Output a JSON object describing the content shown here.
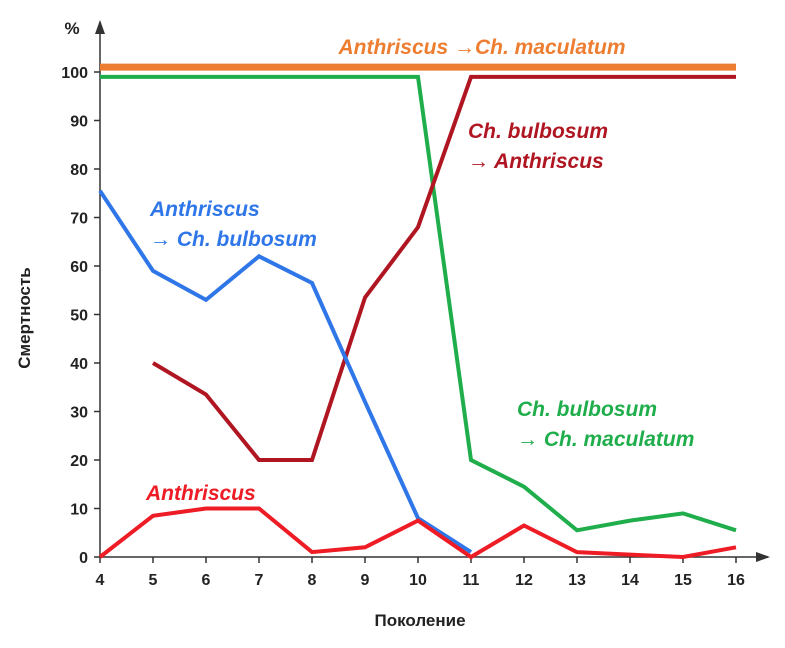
{
  "chart_data": {
    "type": "line",
    "xlabel": "Поколение",
    "ylabel": "Смертность",
    "yunit": "%",
    "xlim": [
      4,
      16
    ],
    "ylim": [
      0,
      100
    ],
    "xticks": [
      4,
      5,
      6,
      7,
      8,
      9,
      10,
      11,
      12,
      13,
      14,
      15,
      16
    ],
    "yticks": [
      0,
      10,
      20,
      30,
      40,
      50,
      60,
      70,
      80,
      90,
      100
    ],
    "grid": false,
    "series": [
      {
        "key": "orange",
        "label_lines": [
          "Anthriscus →Ch. maculatum"
        ],
        "color": "#ed7d31",
        "x": [
          4,
          16
        ],
        "y": [
          101,
          101
        ]
      },
      {
        "key": "green",
        "label_lines": [
          "Ch. bulbosum",
          "→ Ch. maculatum"
        ],
        "color": "#1fae4b",
        "x": [
          4,
          5,
          6,
          7,
          8,
          9,
          10,
          11,
          12,
          13,
          14,
          15,
          16
        ],
        "y": [
          99,
          99,
          99,
          99,
          99,
          99,
          99,
          20,
          14.5,
          5.5,
          7.5,
          9,
          5.5
        ]
      },
      {
        "key": "darkred",
        "label_lines": [
          "Ch. bulbosum",
          "→ Anthriscus"
        ],
        "color": "#b01622",
        "x": [
          5,
          6,
          7,
          8,
          9,
          10,
          11,
          12,
          13,
          14,
          15,
          16
        ],
        "y": [
          40,
          33.5,
          20,
          20,
          53.5,
          68,
          99,
          99,
          99,
          99,
          99,
          99
        ]
      },
      {
        "key": "blue",
        "label_lines": [
          "Anthriscus",
          "→ Ch. bulbosum"
        ],
        "color": "#2f76e8",
        "x": [
          4,
          5,
          6,
          7,
          8,
          9,
          10,
          11
        ],
        "y": [
          75.5,
          59,
          53,
          62,
          56.5,
          32,
          8,
          1
        ]
      },
      {
        "key": "red",
        "label_lines": [
          "Anthriscus"
        ],
        "color": "#ee1c25",
        "x": [
          4,
          5,
          6,
          7,
          8,
          9,
          10,
          11,
          12,
          13,
          14,
          15,
          16
        ],
        "y": [
          0,
          8.5,
          10,
          10,
          1,
          2,
          7.5,
          0,
          6.5,
          1,
          0.5,
          0,
          2
        ]
      }
    ]
  }
}
